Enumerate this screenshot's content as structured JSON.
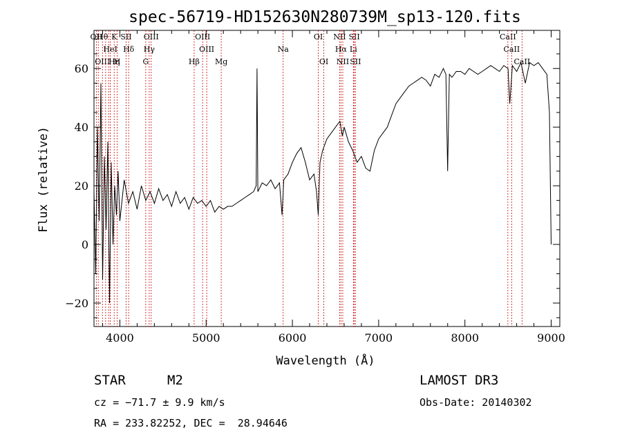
{
  "chart_data": {
    "type": "line",
    "title": "spec-56719-HD152630N280739M_sp13-120.fits",
    "xlabel": "Wavelength (Å)",
    "ylabel": "Flux (relative)",
    "xlim": [
      3700,
      9100
    ],
    "ylim": [
      -28,
      73
    ],
    "xticks": [
      4000,
      5000,
      6000,
      7000,
      8000,
      9000
    ],
    "yticks": [
      -20,
      0,
      20,
      40,
      60
    ],
    "grid": false,
    "series": [
      {
        "x": [
          3700,
          3720,
          3740,
          3760,
          3780,
          3800,
          3820,
          3840,
          3860,
          3880,
          3900,
          3920,
          3940,
          3960,
          3980,
          4000,
          4050,
          4100,
          4150,
          4200,
          4250,
          4300,
          4350,
          4400,
          4450,
          4500,
          4550,
          4600,
          4650,
          4700,
          4750,
          4800,
          4850,
          4900,
          4950,
          5000,
          5050,
          5100,
          5150,
          5200,
          5250,
          5300,
          5350,
          5400,
          5450,
          5500,
          5550,
          5580,
          5590,
          5600,
          5650,
          5700,
          5750,
          5800,
          5850,
          5880,
          5900,
          5950,
          6000,
          6050,
          6100,
          6150,
          6200,
          6250,
          6280,
          6300,
          6320,
          6350,
          6400,
          6450,
          6500,
          6550,
          6580,
          6600,
          6650,
          6700,
          6750,
          6800,
          6850,
          6900,
          6950,
          7000,
          7050,
          7100,
          7150,
          7200,
          7250,
          7300,
          7350,
          7400,
          7450,
          7500,
          7550,
          7600,
          7650,
          7700,
          7750,
          7780,
          7800,
          7820,
          7850,
          7900,
          7950,
          8000,
          8050,
          8100,
          8150,
          8200,
          8250,
          8300,
          8350,
          8400,
          8450,
          8500,
          8520,
          8550,
          8600,
          8650,
          8700,
          8750,
          8800,
          8850,
          8900,
          8950,
          8980,
          9000
        ],
        "y": [
          18,
          -10,
          40,
          8,
          55,
          -12,
          30,
          5,
          35,
          -20,
          28,
          0,
          20,
          10,
          25,
          8,
          22,
          14,
          18,
          12,
          20,
          15,
          18,
          14,
          19,
          15,
          17,
          13,
          18,
          14,
          16,
          12,
          16,
          14,
          15,
          13,
          15,
          11,
          13,
          12,
          13,
          13,
          14,
          15,
          16,
          17,
          18,
          20,
          60,
          18,
          21,
          20,
          22,
          19,
          21,
          10,
          22,
          24,
          28,
          31,
          33,
          28,
          22,
          24,
          18,
          10,
          28,
          32,
          36,
          38,
          40,
          42,
          37,
          40,
          35,
          32,
          28,
          30,
          26,
          25,
          32,
          36,
          38,
          40,
          44,
          48,
          50,
          52,
          54,
          55,
          56,
          57,
          56,
          54,
          58,
          57,
          60,
          58,
          25,
          58,
          57,
          59,
          59,
          58,
          60,
          59,
          58,
          59,
          60,
          61,
          60,
          59,
          61,
          60,
          48,
          61,
          59,
          62,
          55,
          62,
          61,
          62,
          60,
          58,
          45,
          0
        ]
      }
    ],
    "line_markers": [
      {
        "x": 3727,
        "top": "OII",
        "bottom": ""
      },
      {
        "x": 3750,
        "top": "",
        "bottom": ""
      },
      {
        "x": 3798,
        "top": "Hθ",
        "bottom": "OIII"
      },
      {
        "x": 3835,
        "top": "",
        "bottom": ""
      },
      {
        "x": 3869,
        "top": "",
        "bottom": ""
      },
      {
        "x": 3889,
        "top": "HeI",
        "bottom": ""
      },
      {
        "x": 3934,
        "top": "K",
        "bottom": "Hη"
      },
      {
        "x": 3969,
        "top": "",
        "bottom": "H"
      },
      {
        "x": 4072,
        "top": "SII",
        "bottom": ""
      },
      {
        "x": 4102,
        "top": "Hδ",
        "bottom": ""
      },
      {
        "x": 4300,
        "top": "",
        "bottom": "G"
      },
      {
        "x": 4340,
        "top": "Hγ",
        "bottom": ""
      },
      {
        "x": 4363,
        "top": "OIII",
        "bottom": ""
      },
      {
        "x": 4861,
        "top": "",
        "bottom": "Hβ"
      },
      {
        "x": 4959,
        "top": "OIII",
        "bottom": ""
      },
      {
        "x": 5007,
        "top": "OIII",
        "bottom": ""
      },
      {
        "x": 5175,
        "top": "",
        "bottom": "Mg"
      },
      {
        "x": 5893,
        "top": "Na",
        "bottom": ""
      },
      {
        "x": 6300,
        "top": "OI",
        "bottom": ""
      },
      {
        "x": 6364,
        "top": "",
        "bottom": "OI"
      },
      {
        "x": 6548,
        "top": "NII",
        "bottom": ""
      },
      {
        "x": 6563,
        "top": "Hα",
        "bottom": ""
      },
      {
        "x": 6584,
        "top": "",
        "bottom": "NII"
      },
      {
        "x": 6707,
        "top": "Li",
        "bottom": ""
      },
      {
        "x": 6717,
        "top": "SII",
        "bottom": ""
      },
      {
        "x": 6731,
        "top": "",
        "bottom": "SII"
      },
      {
        "x": 8498,
        "top": "CaII",
        "bottom": ""
      },
      {
        "x": 8542,
        "top": "CaII",
        "bottom": ""
      },
      {
        "x": 8662,
        "top": "",
        "bottom": "CaII"
      }
    ],
    "marker_color": "#c80000"
  },
  "info": {
    "object_class": "STAR",
    "subclass": "M2",
    "survey": "LAMOST DR3",
    "cz": "cz = −71.7 ± 9.9 km/s",
    "obs_date": "Obs-Date: 20140302",
    "coords": "RA = 233.82252, DEC =  28.94646"
  }
}
